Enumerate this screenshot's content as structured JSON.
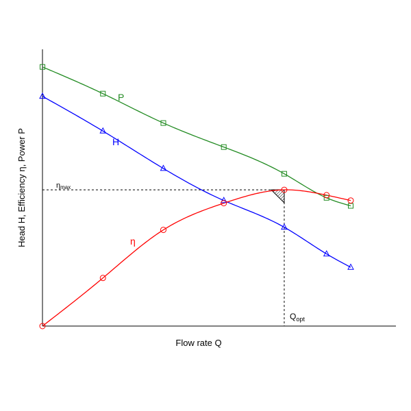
{
  "chart_data": {
    "type": "line",
    "title": "",
    "xlabel": "Flow rate Q",
    "ylabel": "Head H, Efficiency η, Power P",
    "xlim": [
      0,
      5.2
    ],
    "ylim": [
      0,
      1.0
    ],
    "grid": false,
    "legend": "none",
    "series": [
      {
        "name": "P",
        "color": "#228B22",
        "marker": "square",
        "x": [
          0,
          1,
          2,
          3,
          4,
          4.7,
          5.1
        ],
        "y": [
          0.97,
          0.87,
          0.76,
          0.67,
          0.57,
          0.48,
          0.45
        ]
      },
      {
        "name": "H",
        "color": "#0000FF",
        "marker": "triangle",
        "x": [
          0,
          1,
          2,
          3,
          4,
          4.7,
          5.1
        ],
        "y": [
          0.86,
          0.73,
          0.59,
          0.47,
          0.37,
          0.27,
          0.22
        ]
      },
      {
        "name": "η",
        "color": "#FF0000",
        "marker": "circle",
        "x": [
          0,
          1,
          2,
          3,
          4,
          4.7,
          5.1
        ],
        "y": [
          0.0,
          0.18,
          0.36,
          0.46,
          0.51,
          0.49,
          0.47
        ]
      }
    ],
    "annotations": {
      "eta_max_label": "η",
      "eta_max_sub": "max",
      "eta_max_value": 0.51,
      "q_opt_label": "Q",
      "q_opt_sub": "opt",
      "q_opt_value": 4.0
    }
  }
}
